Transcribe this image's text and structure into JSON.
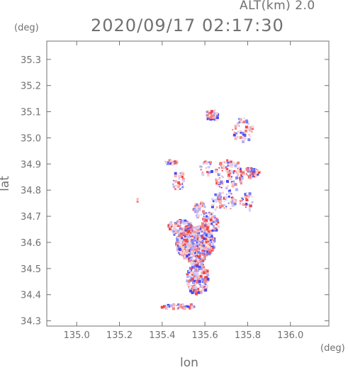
{
  "header": {
    "altitude": "ALT(km) 2.0",
    "datetime": "2020/09/17 02:17:30"
  },
  "axes": {
    "y_unit": "(deg)",
    "x_unit": "(deg)",
    "x_title": "lon",
    "y_title": "lat"
  },
  "chart_data": {
    "type": "scatter",
    "xlim": [
      134.86,
      136.18
    ],
    "ylim": [
      34.28,
      35.37
    ],
    "x_ticks": [
      135.0,
      135.2,
      135.4,
      135.6,
      135.8,
      136.0
    ],
    "x_tick_labels": [
      "135.0",
      "135.2",
      "135.4",
      "135.6",
      "135.8",
      "136.0"
    ],
    "y_ticks": [
      34.3,
      34.4,
      34.5,
      34.6,
      34.7,
      34.8,
      34.9,
      35.0,
      35.1,
      35.2,
      35.3
    ],
    "y_tick_labels": [
      "34.3",
      "34.4",
      "34.5",
      "34.6",
      "34.7",
      "34.8",
      "34.9",
      "35.0",
      "35.1",
      "35.2",
      "35.3"
    ],
    "colors": {
      "positive": "#f04848",
      "negative": "#4848f0",
      "frame": "#707070"
    },
    "clusters": [
      {
        "lon": 135.55,
        "lat": 34.6,
        "rlon": 0.09,
        "rlat": 0.07,
        "count": 520
      },
      {
        "lon": 135.48,
        "lat": 34.66,
        "rlon": 0.06,
        "rlat": 0.03,
        "count": 110
      },
      {
        "lon": 135.56,
        "lat": 34.47,
        "rlon": 0.05,
        "rlat": 0.07,
        "count": 220
      },
      {
        "lon": 135.62,
        "lat": 34.68,
        "rlon": 0.04,
        "rlat": 0.04,
        "count": 90
      },
      {
        "lon": 135.47,
        "lat": 34.36,
        "rlon": 0.08,
        "rlat": 0.01,
        "count": 50
      },
      {
        "lon": 135.44,
        "lat": 34.91,
        "rlon": 0.03,
        "rlat": 0.01,
        "count": 30
      },
      {
        "lon": 135.47,
        "lat": 34.84,
        "rlon": 0.03,
        "rlat": 0.04,
        "count": 35
      },
      {
        "lon": 135.71,
        "lat": 34.86,
        "rlon": 0.07,
        "rlat": 0.06,
        "count": 110
      },
      {
        "lon": 135.81,
        "lat": 34.87,
        "rlon": 0.04,
        "rlat": 0.02,
        "count": 60
      },
      {
        "lon": 135.68,
        "lat": 34.76,
        "rlon": 0.06,
        "rlat": 0.04,
        "count": 60
      },
      {
        "lon": 135.79,
        "lat": 34.76,
        "rlon": 0.03,
        "rlat": 0.04,
        "count": 35
      },
      {
        "lon": 135.6,
        "lat": 34.89,
        "rlon": 0.03,
        "rlat": 0.03,
        "count": 25
      },
      {
        "lon": 135.63,
        "lat": 35.09,
        "rlon": 0.04,
        "rlat": 0.02,
        "count": 40
      },
      {
        "lon": 135.77,
        "lat": 35.03,
        "rlon": 0.05,
        "rlat": 0.05,
        "count": 50
      },
      {
        "lon": 135.57,
        "lat": 34.73,
        "rlon": 0.03,
        "rlat": 0.03,
        "count": 40
      }
    ],
    "isolated_points": [
      {
        "lon": 135.28,
        "lat": 34.76,
        "sign": "positive"
      },
      {
        "lon": 135.28,
        "lat": 34.77,
        "sign": "positive"
      }
    ]
  }
}
